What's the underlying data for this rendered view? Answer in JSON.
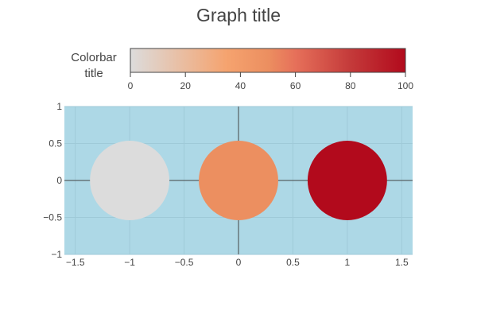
{
  "chart_data": {
    "type": "scatter",
    "title": "Graph title",
    "xlabel": "",
    "ylabel": "",
    "xlim": [
      -1.6,
      1.6
    ],
    "ylim": [
      -1,
      1
    ],
    "x_ticks": [
      "−1.5",
      "−1",
      "−0.5",
      "0",
      "0.5",
      "1",
      "1.5"
    ],
    "x_tick_values": [
      -1.5,
      -1,
      -0.5,
      0,
      0.5,
      1,
      1.5
    ],
    "y_ticks": [
      "−1",
      "−0.5",
      "0",
      "0.5",
      "1"
    ],
    "y_tick_values": [
      -1,
      -0.5,
      0,
      0.5,
      1
    ],
    "plot_background": "#add8e6",
    "grid": true,
    "zero_lines": true,
    "points": [
      {
        "x": -1,
        "y": 0,
        "color_value": 0
      },
      {
        "x": 0,
        "y": 0,
        "color_value": 50
      },
      {
        "x": 1,
        "y": 0,
        "color_value": 100
      }
    ],
    "marker_size_data": 0.365,
    "colorbar": {
      "title_lines": [
        "Colorbar",
        "title"
      ],
      "range": [
        0,
        100
      ],
      "ticks": [
        "0",
        "20",
        "40",
        "60",
        "80",
        "100"
      ],
      "tick_values": [
        0,
        20,
        40,
        60,
        80,
        100
      ],
      "colorscale": [
        [
          0,
          "#dcdcdc"
        ],
        [
          0.35,
          "#f5a36f"
        ],
        [
          0.5,
          "#ec8f60"
        ],
        [
          0.6,
          "#e6705a"
        ],
        [
          0.8,
          "#c43a3a"
        ],
        [
          1,
          "#b20a1c"
        ]
      ],
      "orientation": "horizontal",
      "placement": "top"
    }
  }
}
